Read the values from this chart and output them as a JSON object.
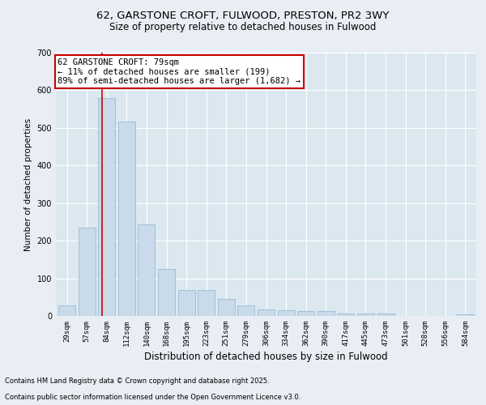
{
  "title_line1": "62, GARSTONE CROFT, FULWOOD, PRESTON, PR2 3WY",
  "title_line2": "Size of property relative to detached houses in Fulwood",
  "xlabel": "Distribution of detached houses by size in Fulwood",
  "ylabel": "Number of detached properties",
  "categories": [
    "29sqm",
    "57sqm",
    "84sqm",
    "112sqm",
    "140sqm",
    "168sqm",
    "195sqm",
    "223sqm",
    "251sqm",
    "279sqm",
    "306sqm",
    "334sqm",
    "362sqm",
    "390sqm",
    "417sqm",
    "445sqm",
    "473sqm",
    "501sqm",
    "528sqm",
    "556sqm",
    "584sqm"
  ],
  "values": [
    28,
    234,
    580,
    517,
    244,
    126,
    70,
    70,
    45,
    27,
    18,
    15,
    12,
    12,
    7,
    7,
    7,
    0,
    0,
    0,
    5
  ],
  "bar_color": "#c9daea",
  "bar_edgecolor": "#9abcd4",
  "red_line_x": 1.75,
  "annotation_text": "62 GARSTONE CROFT: 79sqm\n← 11% of detached houses are smaller (199)\n89% of semi-detached houses are larger (1,682) →",
  "annotation_box_facecolor": "#ffffff",
  "annotation_box_edgecolor": "#cc0000",
  "annotation_fontsize": 7.5,
  "ylim": [
    0,
    700
  ],
  "yticks": [
    0,
    100,
    200,
    300,
    400,
    500,
    600,
    700
  ],
  "plot_bg_color": "#dce8f0",
  "fig_bg_color": "#e8eef4",
  "grid_color": "#ffffff",
  "title1_fontsize": 9.5,
  "title2_fontsize": 8.5,
  "xlabel_fontsize": 8.5,
  "ylabel_fontsize": 7.5,
  "tick_fontsize": 6.5,
  "footer_line1": "Contains HM Land Registry data © Crown copyright and database right 2025.",
  "footer_line2": "Contains public sector information licensed under the Open Government Licence v3.0."
}
